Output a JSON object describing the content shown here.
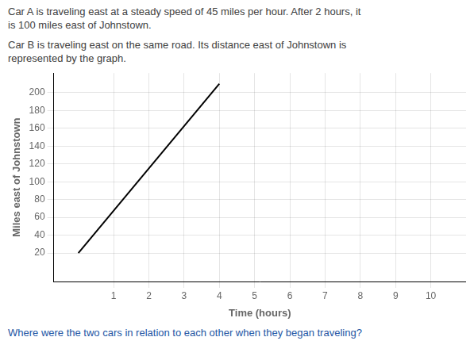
{
  "chart_data": {
    "type": "line",
    "annotations": [
      "Car A is traveling east at a steady speed of 45 miles per hour. After 2 hours, it",
      "is 100 miles east of Johnstown.",
      "Car B is traveling east on the same road. Its distance east of Johnstown is",
      "represented by the graph.",
      "Where were the two cars in relation to each other when they began traveling?"
    ],
    "xlabel": "Time (hours)",
    "ylabel": "Miles east of Johnstown",
    "x": [
      0,
      4.0
    ],
    "series": [
      {
        "color": "#000000",
        "values": [
          20,
          210
        ]
      }
    ],
    "xlim": [
      -0.7,
      11.0
    ],
    "ylim": [
      -12,
      222
    ],
    "xticks": [
      1,
      2,
      3,
      4,
      5,
      6,
      7,
      8,
      9,
      10
    ],
    "yticks": [
      20,
      40,
      60,
      80,
      100,
      120,
      140,
      160,
      180,
      200
    ],
    "grid": true
  }
}
